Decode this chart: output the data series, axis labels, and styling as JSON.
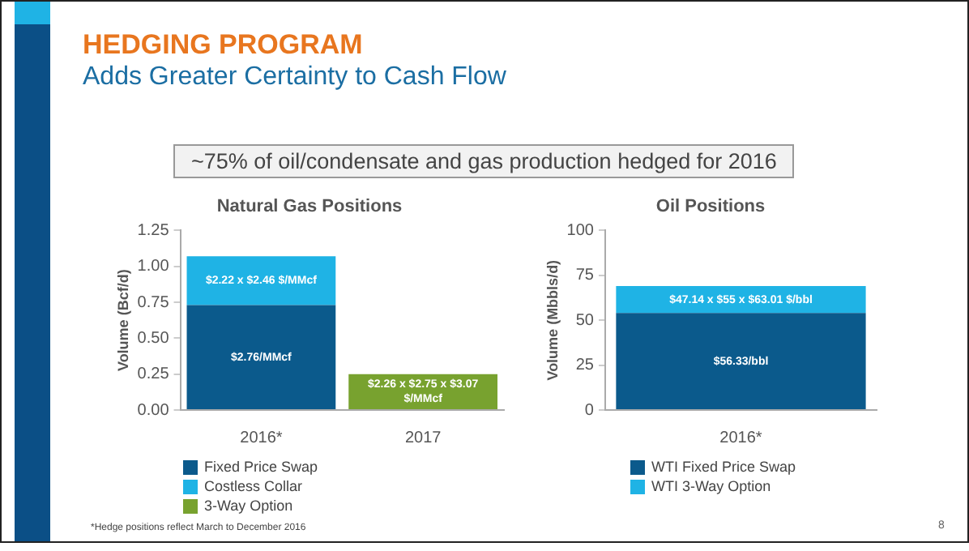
{
  "chart_data": [
    {
      "type": "other",
      "title": "HEDGING PROGRAM",
      "subtitle": "Adds Greater Certainty to Cash Flow",
      "annotations": [
        "~75% of oil/condensate and gas production hedged for 2016",
        "*Hedge positions reflect March to December 2016",
        "8"
      ]
    },
    {
      "type": "bar",
      "title": "Natural Gas Positions",
      "ylabel": "Volume (Bcf/d)",
      "categories": [
        "2016*",
        "2017"
      ],
      "stacked": true,
      "grid": false,
      "legend": "bottom",
      "series": [
        {
          "name": "Fixed Price Swap",
          "color": "#0b5a8c",
          "values": [
            0.73,
            null
          ]
        },
        {
          "name": "Costless Collar",
          "color": "#1fb3e5",
          "values": [
            0.34,
            null
          ]
        },
        {
          "name": "3-Way Option",
          "color": "#78a22f",
          "values": [
            null,
            0.25
          ]
        }
      ],
      "annotations": [
        "$2.76/MMcf",
        "$2.22 x $2.46 $/MMcf",
        "$2.26 x $2.75 x $3.07 $/MMcf"
      ],
      "ylim": [
        0,
        1.25
      ],
      "yticks": [
        {
          "value": 0,
          "label": "0.00"
        },
        {
          "value": 0.25,
          "label": "0.25"
        },
        {
          "value": 0.5,
          "label": "0.50"
        },
        {
          "value": 0.75,
          "label": "0.75"
        },
        {
          "value": 1,
          "label": "1.00"
        },
        {
          "value": 1.25,
          "label": "1.25"
        }
      ]
    },
    {
      "type": "bar",
      "title": "Oil Positions",
      "ylabel": "Volume (Mbbls/d)",
      "categories": [
        "2016*"
      ],
      "stacked": true,
      "grid": false,
      "legend": "bottom",
      "series": [
        {
          "name": "WTI Fixed Price Swap",
          "color": "#0b5a8c",
          "values": [
            54
          ]
        },
        {
          "name": "WTI 3-Way Option",
          "color": "#1fb3e5",
          "values": [
            15
          ]
        }
      ],
      "annotations": [
        "$56.33/bbl",
        "$47.14 x $55 x $63.01 $/bbl"
      ],
      "ylim": [
        0,
        100
      ],
      "yticks": [
        0,
        25,
        50,
        75,
        100
      ]
    }
  ]
}
